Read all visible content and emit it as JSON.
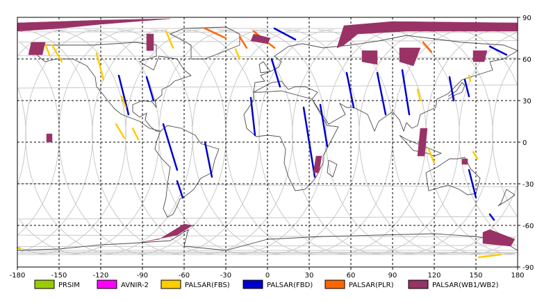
{
  "map": {
    "projection": "equirectangular",
    "lon_range": [
      -180,
      180
    ],
    "lat_range": [
      -90,
      90
    ],
    "grid": true,
    "x_ticks": [
      {
        "value": -180,
        "label": "-180"
      },
      {
        "value": -150,
        "label": "-150"
      },
      {
        "value": -120,
        "label": "-120"
      },
      {
        "value": -90,
        "label": "-90"
      },
      {
        "value": -60,
        "label": "-60"
      },
      {
        "value": -30,
        "label": "-30"
      },
      {
        "value": 0,
        "label": "0"
      },
      {
        "value": 30,
        "label": "30"
      },
      {
        "value": 60,
        "label": "60"
      },
      {
        "value": 90,
        "label": "90"
      },
      {
        "value": 120,
        "label": "120"
      },
      {
        "value": 150,
        "label": "150"
      },
      {
        "value": 180,
        "label": "180"
      }
    ],
    "y_ticks": [
      {
        "value": 90,
        "label": "90"
      },
      {
        "value": 60,
        "label": "60"
      },
      {
        "value": 30,
        "label": "30"
      },
      {
        "value": 0,
        "label": "0"
      },
      {
        "value": -30,
        "label": "-30"
      },
      {
        "value": -60,
        "label": "-60"
      },
      {
        "value": -90,
        "label": "-90"
      }
    ]
  },
  "legend": [
    {
      "label": "PRSIM",
      "color": "#99cc00"
    },
    {
      "label": "AVNIR-2",
      "color": "#ff00ff"
    },
    {
      "label": "PALSAR(FBS)",
      "color": "#ffcc00"
    },
    {
      "label": "PALSAR(FBD)",
      "color": "#0000cc"
    },
    {
      "label": "PALSAR(PLR)",
      "color": "#ff6600"
    },
    {
      "label": "PALSAR(WB1/WB2)",
      "color": "#993366"
    }
  ],
  "chart_data": {
    "type": "scatter",
    "xlim": [
      -180,
      180
    ],
    "ylim": [
      -90,
      90
    ],
    "series": [
      {
        "name": "PALSAR(FBD)",
        "color": "#0000cc",
        "segments": [
          [
            [
              -107,
              48
            ],
            [
              -100,
              20
            ]
          ],
          [
            [
              -87,
              47
            ],
            [
              -82,
              30
            ]
          ],
          [
            [
              -75,
              13
            ],
            [
              -65,
              -20
            ]
          ],
          [
            [
              -45,
              0
            ],
            [
              -40,
              -25
            ]
          ],
          [
            [
              -65,
              -28
            ],
            [
              -61,
              -40
            ]
          ],
          [
            [
              -12,
              32
            ],
            [
              -9,
              5
            ]
          ],
          [
            [
              3,
              60
            ],
            [
              9,
              40
            ]
          ],
          [
            [
              38,
              27
            ],
            [
              43,
              -3
            ]
          ],
          [
            [
              26,
              25
            ],
            [
              34,
              -25
            ]
          ],
          [
            [
              57,
              50
            ],
            [
              62,
              25
            ]
          ],
          [
            [
              79,
              50
            ],
            [
              85,
              20
            ]
          ],
          [
            [
              97,
              52
            ],
            [
              102,
              20
            ]
          ],
          [
            [
              131,
              47
            ],
            [
              134,
              30
            ]
          ],
          [
            [
              142,
              45
            ],
            [
              145,
              33
            ]
          ],
          [
            [
              145,
              -20
            ],
            [
              150,
              -40
            ]
          ],
          [
            [
              160,
              69
            ],
            [
              172,
              63
            ]
          ],
          [
            [
              5,
              82
            ],
            [
              20,
              74
            ]
          ],
          [
            [
              160,
              -52
            ],
            [
              163,
              -56
            ]
          ]
        ]
      },
      {
        "name": "PALSAR(FBS)",
        "color": "#ffcc00",
        "segments": [
          [
            [
              -155,
              70
            ],
            [
              -148,
              58
            ]
          ],
          [
            [
              -160,
              71
            ],
            [
              -157,
              63
            ]
          ],
          [
            [
              -123,
              64
            ],
            [
              -118,
              45
            ]
          ],
          [
            [
              -109,
              13
            ],
            [
              -103,
              3
            ]
          ],
          [
            [
              -105,
              33
            ],
            [
              -102,
              25
            ]
          ],
          [
            [
              -97,
              10
            ],
            [
              -93,
              2
            ]
          ],
          [
            [
              -73,
              80
            ],
            [
              -68,
              68
            ]
          ],
          [
            [
              -23,
              67
            ],
            [
              -20,
              60
            ]
          ],
          [
            [
              108,
              38
            ],
            [
              110,
              30
            ]
          ],
          [
            [
              116,
              -5
            ],
            [
              120,
              -15
            ]
          ],
          [
            [
              145,
              48
            ],
            [
              146,
              44
            ]
          ],
          [
            [
              148,
              -7
            ],
            [
              151,
              -12
            ]
          ],
          [
            [
              -180,
              -76
            ],
            [
              -178,
              -77
            ]
          ],
          [
            [
              152,
              -83
            ],
            [
              168,
              -81
            ]
          ]
        ]
      },
      {
        "name": "PALSAR(PLR)",
        "color": "#ff6600",
        "segments": [
          [
            [
              -45,
              82
            ],
            [
              -30,
              75
            ]
          ],
          [
            [
              -10,
              80
            ],
            [
              5,
              68
            ]
          ],
          [
            [
              112,
              72
            ],
            [
              118,
              65
            ]
          ],
          [
            [
              -20,
              76
            ],
            [
              -15,
              68
            ]
          ]
        ]
      },
      {
        "name": "PALSAR(WB1/WB2)",
        "color": "#993366",
        "polygons": [
          [
            [
              -180,
              86
            ],
            [
              -120,
              88
            ],
            [
              -70,
              89
            ],
            [
              -120,
              85
            ],
            [
              -150,
              82
            ],
            [
              -180,
              80
            ]
          ],
          [
            [
              -170,
              72
            ],
            [
              -160,
              72
            ],
            [
              -162,
              63
            ],
            [
              -172,
              63
            ]
          ],
          [
            [
              -87,
              78
            ],
            [
              -82,
              78
            ],
            [
              -82,
              66
            ],
            [
              -87,
              66
            ]
          ],
          [
            [
              -10,
              78
            ],
            [
              2,
              75
            ],
            [
              0,
              71
            ],
            [
              -12,
              73
            ]
          ],
          [
            [
              55,
              84
            ],
            [
              90,
              87
            ],
            [
              180,
              86
            ],
            [
              180,
              80
            ],
            [
              100,
              80
            ],
            [
              65,
              78
            ],
            [
              55,
              70
            ],
            [
              50,
              68
            ]
          ],
          [
            [
              68,
              66
            ],
            [
              79,
              66
            ],
            [
              79,
              56
            ],
            [
              68,
              58
            ]
          ],
          [
            [
              95,
              68
            ],
            [
              110,
              68
            ],
            [
              105,
              55
            ],
            [
              95,
              58
            ]
          ],
          [
            [
              148,
              66
            ],
            [
              158,
              66
            ],
            [
              156,
              58
            ],
            [
              148,
              58
            ]
          ],
          [
            [
              110,
              10
            ],
            [
              115,
              10
            ],
            [
              113,
              -10
            ],
            [
              108,
              -10
            ]
          ],
          [
            [
              35,
              -10
            ],
            [
              39,
              -10
            ],
            [
              37,
              -22
            ],
            [
              33,
              -22
            ]
          ],
          [
            [
              140,
              -12
            ],
            [
              144,
              -12
            ],
            [
              144,
              -16
            ],
            [
              140,
              -16
            ]
          ],
          [
            [
              -159,
              6
            ],
            [
              -155,
              6
            ],
            [
              -155,
              0
            ],
            [
              -159,
              0
            ]
          ],
          [
            [
              -90,
              -72
            ],
            [
              -65,
              -67
            ],
            [
              -54,
              -60
            ],
            [
              -60,
              -59
            ],
            [
              -78,
              -70
            ],
            [
              -90,
              -72
            ]
          ],
          [
            [
              155,
              -65
            ],
            [
              160,
              -63
            ],
            [
              178,
              -70
            ],
            [
              175,
              -75
            ],
            [
              155,
              -73
            ]
          ]
        ]
      }
    ]
  }
}
